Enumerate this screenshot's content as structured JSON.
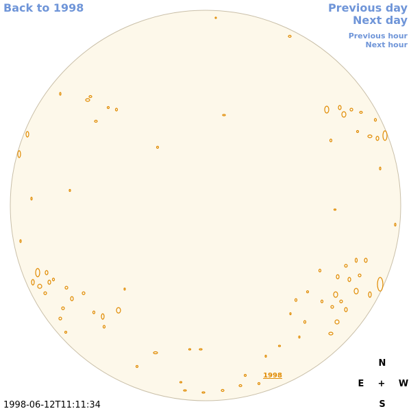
{
  "nav": {
    "back": "Back to 1998",
    "previous_day": "Previous day",
    "next_day": "Next day",
    "previous_hour": "Previous hour",
    "next_hour": "Next hour"
  },
  "image": {
    "label": "1998",
    "timestamp": "1998-06-12T11:11:34"
  },
  "compass": {
    "north": "N",
    "east": "E",
    "center": "+",
    "west": "W",
    "south": "S"
  }
}
